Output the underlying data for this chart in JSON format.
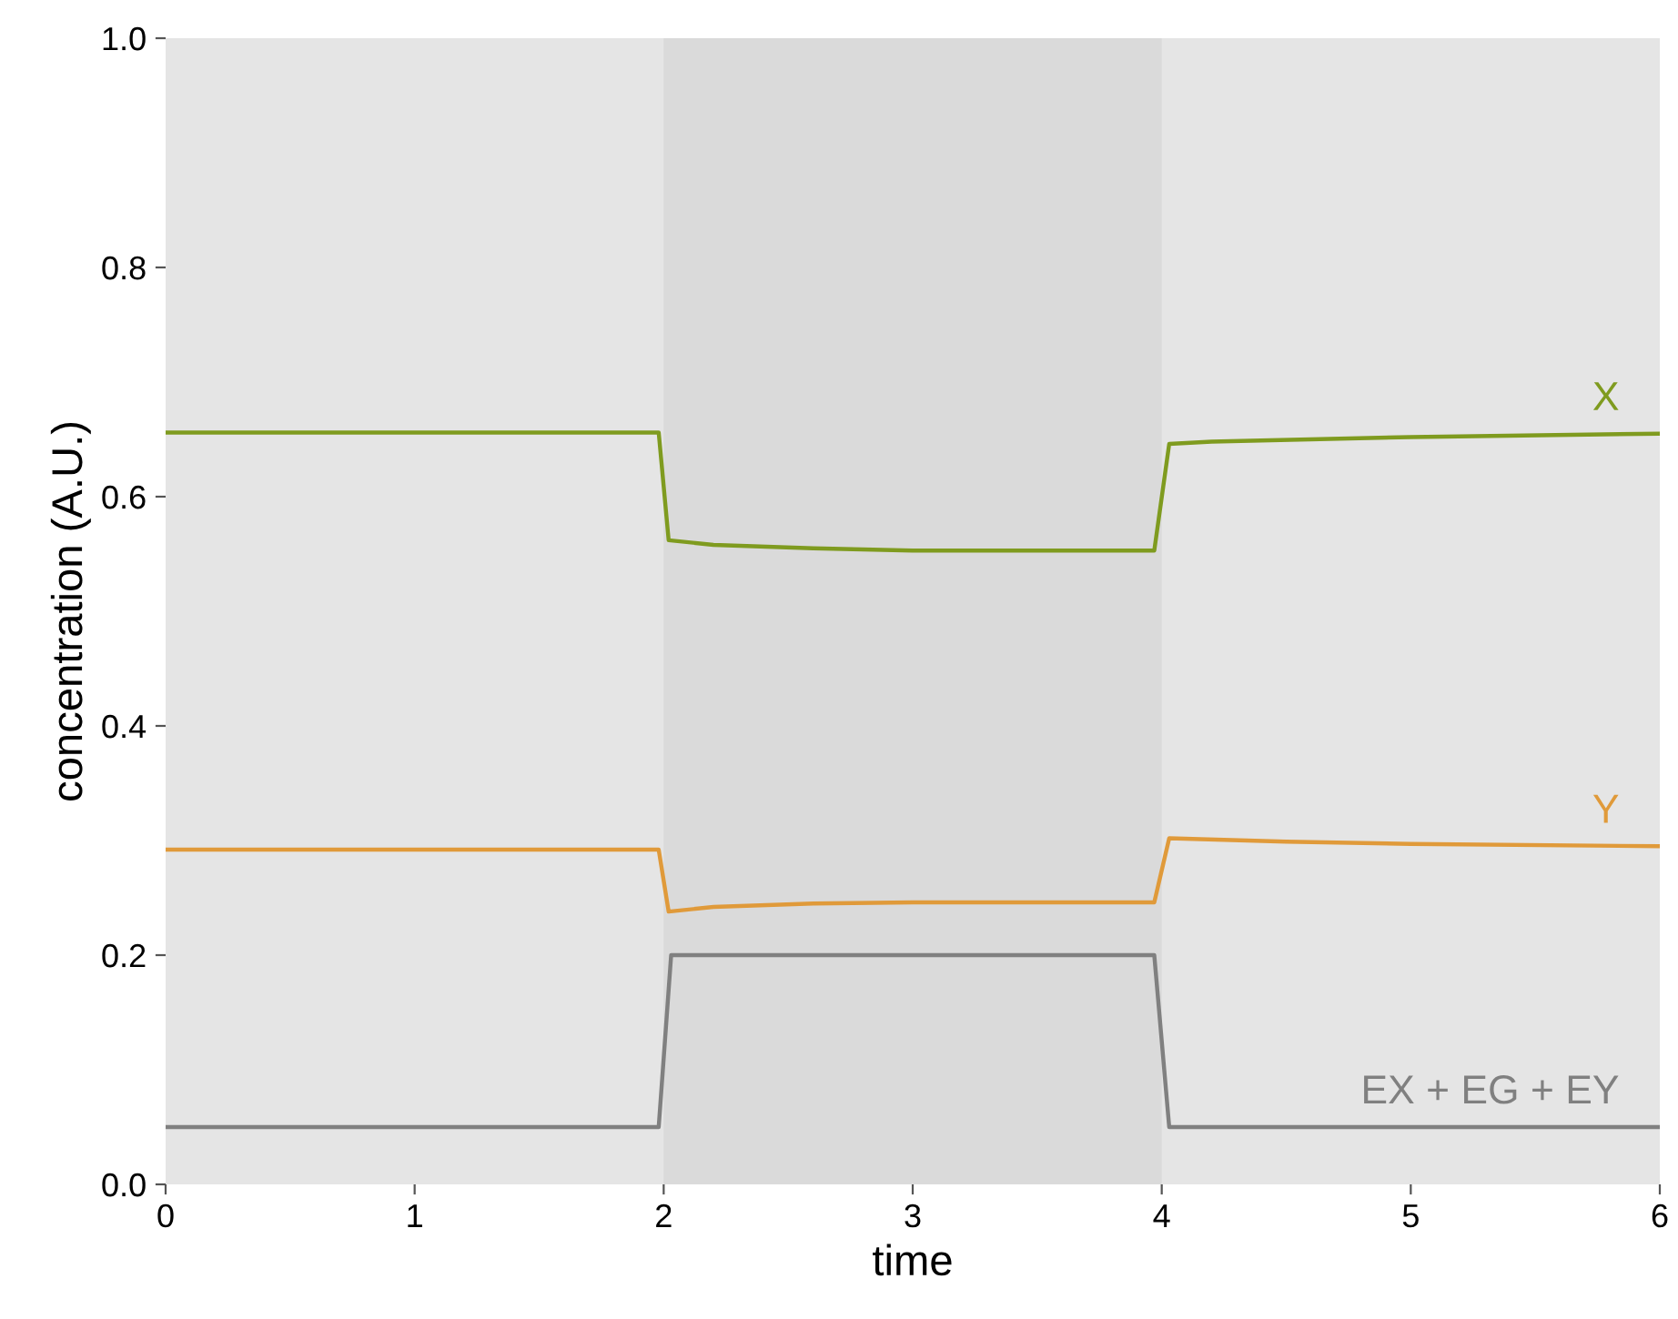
{
  "chart_data": {
    "type": "line",
    "xlabel": "time",
    "ylabel": "concentration (A.U.)",
    "xlim": [
      0,
      6
    ],
    "xticks": [
      0,
      1,
      2,
      3,
      4,
      5,
      6
    ],
    "ylim": [
      0,
      1
    ],
    "yticks": [
      {
        "value": 0,
        "label": "0.0"
      },
      0.2,
      0.4,
      0.6,
      0.8,
      {
        "value": 1,
        "label": "1.0"
      }
    ],
    "bands": [
      {
        "axis": "x",
        "from": 2,
        "to": 4,
        "color": "#dadada"
      }
    ],
    "series": [
      {
        "name": "X",
        "color": "#7f9b1f",
        "x": [
          0,
          1.98,
          2.02,
          2.2,
          2.6,
          3,
          3.5,
          3.97,
          4.03,
          4.2,
          5,
          6
        ],
        "values": [
          0.656,
          0.656,
          0.562,
          0.558,
          0.555,
          0.553,
          0.553,
          0.553,
          0.646,
          0.648,
          0.652,
          0.655
        ]
      },
      {
        "name": "Y",
        "color": "#e09a3a",
        "x": [
          0,
          1.98,
          2.02,
          2.2,
          2.6,
          3,
          3.97,
          4.03,
          4.5,
          5,
          6
        ],
        "values": [
          0.292,
          0.292,
          0.238,
          0.242,
          0.245,
          0.246,
          0.246,
          0.302,
          0.299,
          0.297,
          0.295
        ]
      },
      {
        "name": "EX + EG + EY",
        "color": "#808080",
        "x": [
          0,
          1.98,
          2.03,
          3.97,
          4.03,
          6
        ],
        "values": [
          0.05,
          0.05,
          0.2,
          0.2,
          0.05,
          0.05
        ]
      }
    ]
  }
}
